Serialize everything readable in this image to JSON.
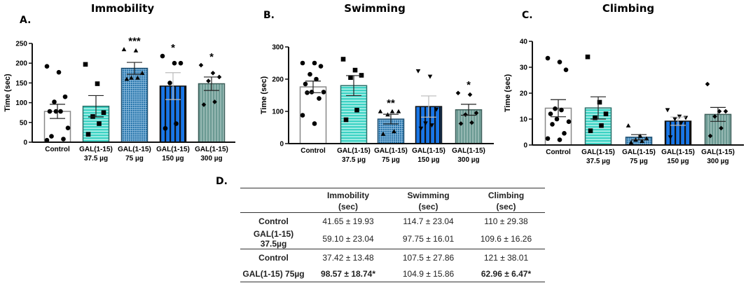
{
  "colors": {
    "control": "#ffffff",
    "gal_37_5": "#3dd3c4",
    "gal_75": "#2b78ad",
    "gal_150": "#1976e6",
    "gal_300": "#6b9a93",
    "axis": "#111111"
  },
  "chart_data": [
    {
      "type": "bar",
      "panel": "A.",
      "title": "Immobility",
      "ylabel": "Time (sec)",
      "xlabel": "",
      "ylim": [
        0,
        250
      ],
      "yticks": [
        0,
        50,
        100,
        150,
        200,
        250
      ],
      "categories": [
        [
          "Control",
          ""
        ],
        [
          "GAL(1-15)",
          "37.5 µg"
        ],
        [
          "GAL(1-15)",
          "75 µg"
        ],
        [
          "GAL(1-15)",
          "150 µg"
        ],
        [
          "GAL(1-15)",
          "300 µg"
        ]
      ],
      "values": [
        78,
        91,
        187,
        142,
        148
      ],
      "sem": [
        18,
        27,
        15,
        34,
        17
      ],
      "significance": [
        "",
        "",
        "***",
        "*",
        "*"
      ],
      "markers": [
        "circle",
        "square",
        "triangle-up",
        "circle",
        "diamond"
      ],
      "points": [
        [
          192,
          177,
          115,
          102,
          78,
          78,
          78,
          36,
          15,
          8,
          5
        ],
        [
          197,
          148,
          75,
          65,
          47,
          20
        ],
        [
          235,
          232,
          175,
          163,
          163,
          160
        ],
        [
          218,
          200,
          200,
          150,
          47,
          35
        ],
        [
          195,
          175,
          165,
          155,
          102,
          95
        ]
      ]
    },
    {
      "type": "bar",
      "panel": "B.",
      "title": "Swimming",
      "ylabel": "Time (sec)",
      "xlabel": "",
      "ylim": [
        0,
        300
      ],
      "yticks": [
        0,
        100,
        200,
        300
      ],
      "categories": [
        [
          "Control",
          ""
        ],
        [
          "GAL(1-15)",
          "37.5 µg"
        ],
        [
          "GAL(1-15)",
          "75 µg"
        ],
        [
          "GAL(1-15)",
          "150 µg"
        ],
        [
          "GAL(1-15)",
          "300 µg"
        ]
      ],
      "values": [
        176,
        180,
        76,
        115,
        105
      ],
      "sem": [
        18,
        31,
        15,
        33,
        17
      ],
      "significance": [
        "",
        "",
        "**",
        "",
        "*"
      ],
      "markers": [
        "circle",
        "square",
        "triangle-up",
        "triangle-down",
        "diamond"
      ],
      "points": [
        [
          250,
          250,
          240,
          215,
          200,
          185,
          160,
          160,
          158,
          140,
          88,
          62
        ],
        [
          262,
          228,
          212,
          205,
          104,
          74
        ],
        [
          100,
          100,
          100,
          90,
          38,
          30
        ],
        [
          225,
          208,
          106,
          63,
          57,
          47
        ],
        [
          157,
          152,
          95,
          90,
          65,
          62
        ]
      ]
    },
    {
      "type": "bar",
      "panel": "C.",
      "title": "Climbing",
      "ylabel": "Time (sec)",
      "xlabel": "",
      "ylim": [
        0,
        40
      ],
      "yticks": [
        0,
        10,
        20,
        30,
        40
      ],
      "categories": [
        [
          "Control",
          ""
        ],
        [
          "GAL(1-15)",
          "37.5 µg"
        ],
        [
          "GAL(1-15)",
          "75 µg"
        ],
        [
          "GAL(1-15)",
          "150 µg"
        ],
        [
          "GAL(1-15)",
          "300 µg"
        ]
      ],
      "values": [
        14.2,
        14.3,
        3.0,
        9.2,
        11.8
      ],
      "sem": [
        3.3,
        4.3,
        1.0,
        1.6,
        2.7
      ],
      "significance": [
        "",
        "",
        "",
        "",
        ""
      ],
      "markers": [
        "circle",
        "square",
        "triangle-up",
        "triangle-down",
        "diamond"
      ],
      "points": [
        [
          33.5,
          32,
          29,
          14,
          13.5,
          12,
          10,
          9,
          8,
          4.5,
          2.5,
          2
        ],
        [
          34,
          16.5,
          12,
          10.5,
          7.5,
          5.5
        ],
        [
          7.5,
          3.5,
          2.5,
          2,
          1.5,
          1
        ],
        [
          13.5,
          11,
          10.5,
          10,
          8.5,
          3
        ],
        [
          23.5,
          13,
          13,
          11,
          6.5,
          3.5
        ]
      ]
    }
  ],
  "table": {
    "panel": "D.",
    "headers": [
      {
        "line1": "",
        "line2": ""
      },
      {
        "line1": "Immobility",
        "line2": "(sec)"
      },
      {
        "line1": "Swimming",
        "line2": "(sec)"
      },
      {
        "line1": "Climbing",
        "line2": "(sec)"
      }
    ],
    "rows": [
      {
        "label": "Control",
        "immobility": "41.65 ± 19.93",
        "swimming": "114.7 ± 23.04",
        "climbing": "110 ± 29.38"
      },
      {
        "label": "GAL(1-15) 37.5µg",
        "immobility": "59.10 ± 23.04",
        "swimming": "97.75 ± 16.01",
        "climbing": "109.6 ± 16.26"
      },
      {
        "label": "Control",
        "immobility": "37.42 ± 13.48",
        "swimming": "107.5 ± 27.86",
        "climbing": "121 ± 38.01"
      },
      {
        "label": "GAL(1-15) 75µg",
        "immobility": "98.57 ± 18.74*",
        "swimming": "104.9 ± 15.86",
        "climbing": "62.96 ± 6.47*"
      }
    ]
  }
}
